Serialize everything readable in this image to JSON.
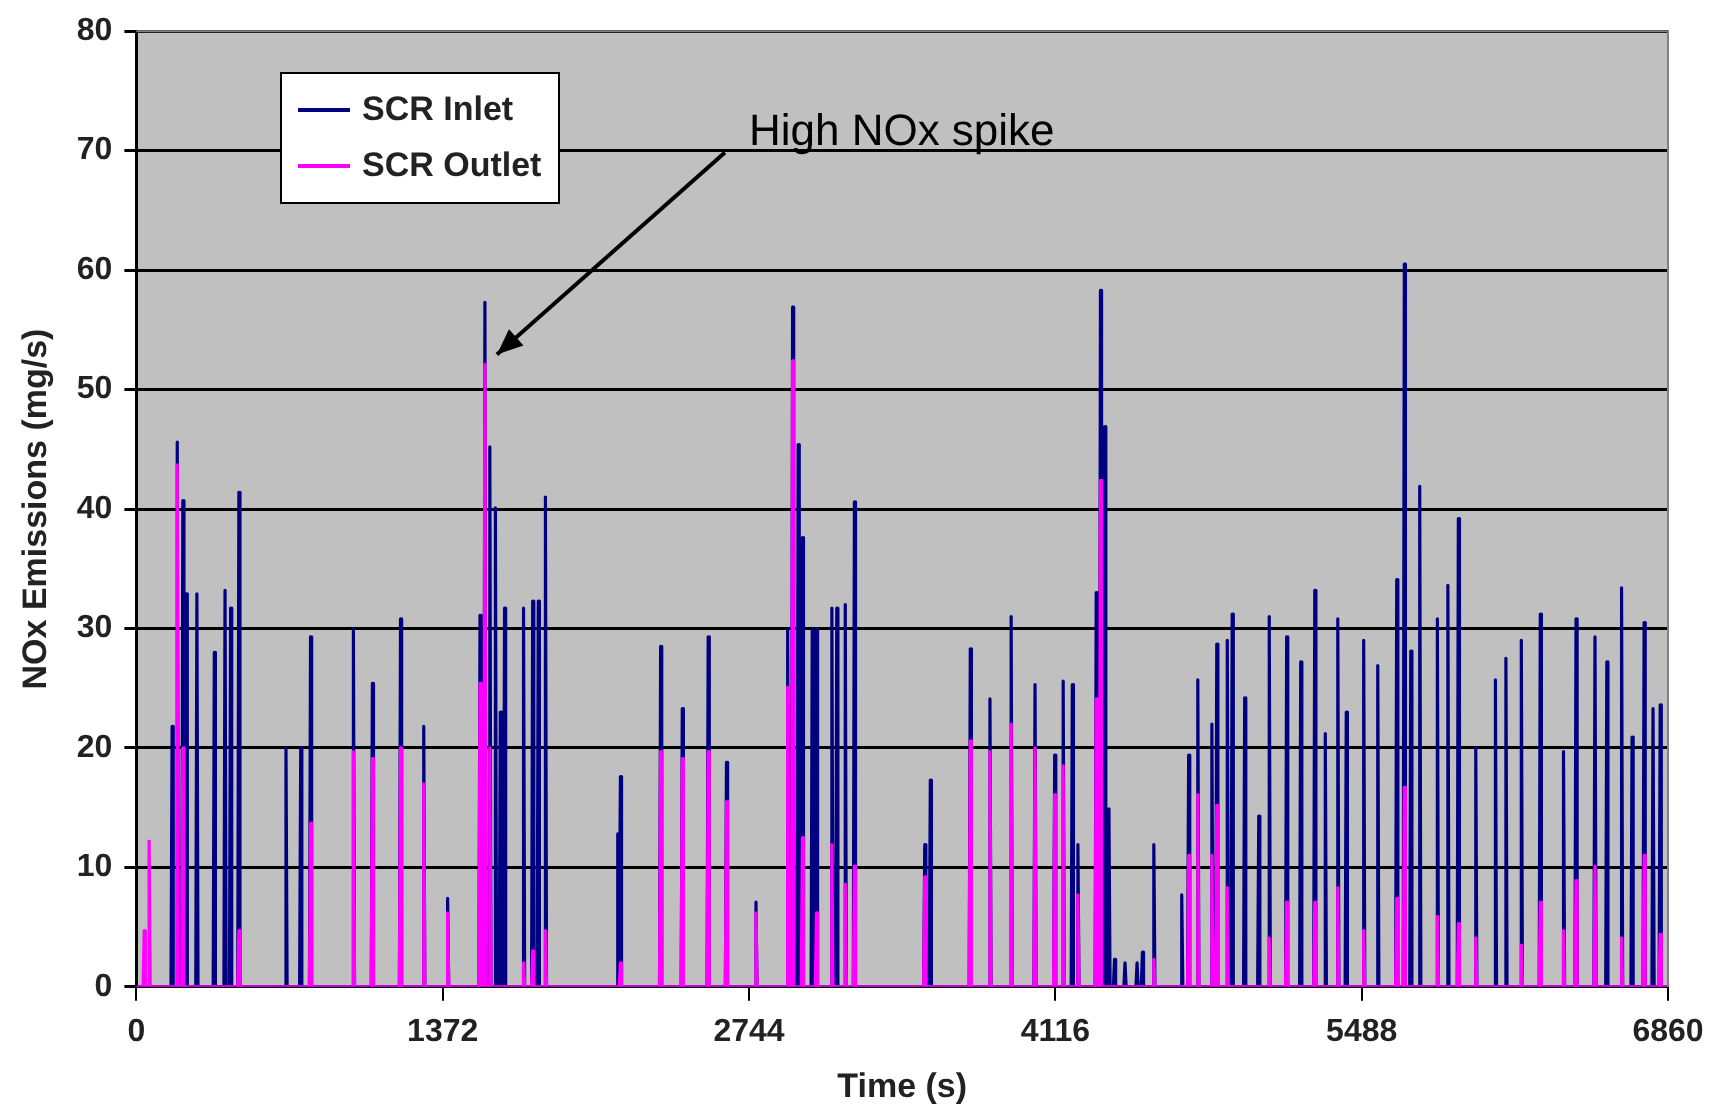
{
  "chart_data": {
    "type": "line",
    "xlabel": "Time (s)",
    "ylabel": "NOx Emissions (mg/s)",
    "xlim": [
      0,
      6860
    ],
    "xticks": [
      0,
      1372,
      2744,
      4116,
      5488,
      6860
    ],
    "ylim": [
      0,
      80
    ],
    "yticks": [
      0,
      10,
      20,
      30,
      40,
      50,
      60,
      70,
      80
    ],
    "grid": "y",
    "legend": "top left",
    "marker": "none",
    "line_style": "solid",
    "annotations": [
      {
        "text": "High NOx spike",
        "x": 1561,
        "y": 52.1
      }
    ],
    "series": [
      {
        "name": "SCR Inlet",
        "color": "#000080",
        "x": [
          0,
          155,
          160,
          165,
          178,
          183,
          188,
          203,
          208,
          213,
          218,
          223,
          228,
          266,
          271,
          276,
          344,
          349,
          354,
          392,
          397,
          402,
          417,
          422,
          427,
          454,
          459,
          464,
          665,
          670,
          675,
          731,
          736,
          741,
          775,
          780,
          785,
          967,
          972,
          977,
          1052,
          1057,
          1062,
          1178,
          1183,
          1188,
          1282,
          1287,
          1292,
          1389,
          1394,
          1399,
          1534,
          1539,
          1544,
          1556,
          1561,
          1566,
          1578,
          1583,
          1588,
          1603,
          1608,
          1613,
          1625,
          1630,
          1635,
          1644,
          1649,
          1654,
          1729,
          1734,
          1739,
          1770,
          1775,
          1780,
          1795,
          1800,
          1805,
          1827,
          1832,
          1837,
          2151,
          2156,
          2161,
          2163,
          2168,
          2173,
          2343,
          2348,
          2353,
          2440,
          2445,
          2450,
          2556,
          2561,
          2566,
          2638,
          2643,
          2648,
          2770,
          2775,
          2780,
          2912,
          2917,
          2922,
          2934,
          2939,
          2944,
          2959,
          2964,
          2969,
          2978,
          2983,
          2988,
          3022,
          3027,
          3032,
          3041,
          3046,
          3051,
          3110,
          3115,
          3120,
          3132,
          3137,
          3142,
          3170,
          3175,
          3180,
          3211,
          3216,
          3221,
          3526,
          3531,
          3536,
          3551,
          3556,
          3561,
          3730,
          3735,
          3740,
          3818,
          3823,
          3828,
          3913,
          3918,
          3923,
          4020,
          4025,
          4030,
          4108,
          4113,
          4118,
          4146,
          4151,
          4156,
          4187,
          4192,
          4197,
          4212,
          4217,
          4222,
          4294,
          4299,
          4304,
          4313,
          4318,
          4323,
          4332,
          4337,
          4342,
          4351,
          4356,
          4361,
          4376,
          4381,
          4386,
          4423,
          4428,
          4433,
          4477,
          4482,
          4487,
          4501,
          4506,
          4511,
          4552,
          4557,
          4562,
          4677,
          4682,
          4687,
          4708,
          4713,
          4718,
          4749,
          4754,
          4759,
          4812,
          4817,
          4822,
          4834,
          4839,
          4844,
          4881,
          4886,
          4891,
          4903,
          4908,
          4913,
          4959,
          4964,
          4969,
          5022,
          5027,
          5032,
          5069,
          5074,
          5079,
          5147,
          5152,
          5157,
          5210,
          5215,
          5220,
          5273,
          5278,
          5283,
          5320,
          5325,
          5330,
          5376,
          5381,
          5386,
          5414,
          5419,
          5424,
          5492,
          5497,
          5502,
          5555,
          5560,
          5565,
          5640,
          5645,
          5650,
          5674,
          5679,
          5684,
          5703,
          5708,
          5713,
          5743,
          5748,
          5753,
          5822,
          5827,
          5832,
          5869,
          5874,
          5879,
          5916,
          5921,
          5926,
          5994,
          5999,
          6004,
          6082,
          6087,
          6092,
          6129,
          6134,
          6139,
          6198,
          6203,
          6208,
          6283,
          6288,
          6293,
          6387,
          6392,
          6397,
          6443,
          6448,
          6453,
          6528,
          6533,
          6538,
          6581,
          6586,
          6591,
          6647,
          6652,
          6657,
          6694,
          6699,
          6704,
          6748,
          6753,
          6758,
          6788,
          6793,
          6798,
          6820,
          6825,
          6830,
          6860
        ],
        "values": [
          0,
          0,
          21.8,
          0,
          0,
          45.6,
          0,
          0,
          40.7,
          0,
          0,
          32.9,
          0,
          0,
          32.9,
          0,
          0,
          28,
          0,
          0,
          33.2,
          0,
          0,
          31.7,
          0,
          0,
          41.4,
          0,
          0,
          20,
          0,
          0,
          20,
          0,
          0,
          29.3,
          0,
          0,
          29.9,
          0,
          0,
          25.4,
          0,
          0,
          30.8,
          0,
          0,
          21.8,
          0,
          0,
          7.4,
          0,
          0,
          31.1,
          0,
          0,
          57.3,
          0,
          0,
          45.2,
          0,
          0,
          40.1,
          0,
          0,
          23,
          0,
          0,
          31.7,
          0,
          0,
          31.7,
          0,
          0,
          32.3,
          0,
          0,
          32.3,
          0,
          0,
          41,
          0,
          0,
          12.8,
          0,
          0,
          17.6,
          0,
          0,
          28.5,
          0,
          0,
          23.3,
          0,
          0,
          29.3,
          0,
          0,
          18.8,
          0,
          0,
          7.1,
          0,
          0,
          29.9,
          0,
          0,
          56.9,
          0,
          0,
          45.4,
          0,
          0,
          37.6,
          0,
          0,
          29.9,
          0,
          0,
          29.9,
          0,
          0,
          31.7,
          0,
          0,
          31.7,
          0,
          0,
          32,
          0,
          0,
          40.6,
          0,
          0,
          11.9,
          0,
          0,
          17.3,
          0,
          0,
          28.3,
          0,
          0,
          24.1,
          0,
          0,
          31,
          0,
          0,
          25.3,
          0,
          0,
          19.4,
          0,
          0,
          25.6,
          0,
          0,
          25.3,
          0,
          0,
          11.9,
          0,
          0,
          33,
          0,
          0,
          58.3,
          0,
          0,
          46.9,
          0,
          0,
          14.9,
          0,
          0,
          2.3,
          0,
          0,
          2,
          0,
          0,
          2,
          0,
          0,
          2.9,
          0,
          0,
          11.9,
          0,
          0,
          7.7,
          0,
          0,
          19.4,
          0,
          0,
          25.7,
          0,
          0,
          22,
          0,
          0,
          28.7,
          0,
          0,
          29,
          0,
          0,
          31.2,
          0,
          0,
          24.2,
          0,
          0,
          14.3,
          0,
          0,
          31,
          0,
          0,
          29.3,
          0,
          0,
          27.2,
          0,
          0,
          33.2,
          0,
          0,
          21.2,
          0,
          0,
          30.8,
          0,
          0,
          23,
          0,
          0,
          29,
          0,
          0,
          26.9,
          0,
          0,
          34.1,
          0,
          0,
          60.5,
          0,
          0,
          28.1,
          0,
          0,
          41.9,
          0,
          0,
          30.8,
          0,
          0,
          33.6,
          0,
          0,
          39.2,
          0,
          0,
          20,
          0,
          0,
          25.7,
          0,
          0,
          27.5,
          0,
          0,
          29,
          0,
          0,
          31.2,
          0,
          0,
          19.7,
          0,
          0,
          30.8,
          0,
          0,
          29.3,
          0,
          0,
          27.2,
          0,
          0,
          33.4,
          0,
          0,
          20.9,
          0,
          0,
          30.5,
          0,
          0,
          23.3,
          0,
          0,
          23.6,
          0,
          0
        ]
      },
      {
        "name": "SCR Outlet",
        "color": "#ff00ff",
        "x": [
          0,
          30,
          35,
          40,
          52,
          57,
          62,
          178,
          183,
          188,
          203,
          208,
          213,
          454,
          459,
          464,
          775,
          780,
          785,
          967,
          972,
          977,
          1052,
          1057,
          1062,
          1178,
          1183,
          1188,
          1282,
          1287,
          1292,
          1389,
          1394,
          1399,
          1534,
          1539,
          1544,
          1556,
          1561,
          1566,
          1578,
          1583,
          1588,
          1729,
          1734,
          1739,
          1770,
          1775,
          1780,
          1827,
          1832,
          1837,
          2163,
          2168,
          2173,
          2343,
          2348,
          2353,
          2440,
          2445,
          2450,
          2556,
          2561,
          2566,
          2638,
          2643,
          2648,
          2770,
          2775,
          2780,
          2912,
          2917,
          2922,
          2934,
          2939,
          2944,
          2978,
          2983,
          2988,
          3041,
          3046,
          3051,
          3110,
          3115,
          3120,
          3170,
          3175,
          3180,
          3211,
          3216,
          3221,
          3526,
          3531,
          3536,
          3730,
          3735,
          3740,
          3818,
          3823,
          3828,
          3913,
          3918,
          3923,
          4020,
          4025,
          4030,
          4108,
          4113,
          4118,
          4146,
          4151,
          4156,
          4212,
          4217,
          4222,
          4294,
          4299,
          4304,
          4313,
          4318,
          4323,
          4552,
          4557,
          4562,
          4708,
          4713,
          4718,
          4749,
          4754,
          4759,
          4812,
          4817,
          4822,
          4834,
          4839,
          4844,
          4881,
          4886,
          4891,
          5069,
          5074,
          5079,
          5147,
          5152,
          5157,
          5273,
          5278,
          5283,
          5376,
          5381,
          5386,
          5492,
          5497,
          5502,
          5640,
          5645,
          5650,
          5674,
          5679,
          5684,
          5822,
          5827,
          5832,
          5916,
          5921,
          5926,
          5994,
          5999,
          6004,
          6198,
          6203,
          6208,
          6283,
          6288,
          6293,
          6387,
          6392,
          6397,
          6443,
          6448,
          6453,
          6528,
          6533,
          6538,
          6647,
          6652,
          6657,
          6748,
          6753,
          6758,
          6820,
          6825,
          6830,
          6860
        ],
        "values": [
          0,
          0,
          4.7,
          0,
          0,
          12.2,
          0,
          0,
          43.7,
          0,
          0,
          20,
          0,
          0,
          4.7,
          0,
          0,
          13.7,
          0,
          0,
          19.7,
          0,
          0,
          19.1,
          0,
          0,
          20,
          0,
          0,
          17,
          0,
          0,
          6.2,
          0,
          0,
          25.4,
          0,
          0,
          52.1,
          0,
          0,
          20,
          0,
          0,
          2,
          0,
          0,
          3,
          0,
          0,
          4.7,
          0,
          0,
          2,
          0,
          0,
          19.7,
          0,
          0,
          19.1,
          0,
          0,
          19.7,
          0,
          0,
          15.5,
          0,
          0,
          6.2,
          0,
          0,
          25.1,
          0,
          0,
          52.4,
          0,
          0,
          12.5,
          0,
          0,
          6.2,
          0,
          0,
          11.9,
          0,
          0,
          8.6,
          0,
          0,
          10.1,
          0,
          0,
          9.2,
          0,
          0,
          20.6,
          0,
          0,
          19.7,
          0,
          0,
          22,
          0,
          0,
          20,
          0,
          0,
          16.1,
          0,
          0,
          18.5,
          0,
          0,
          7.7,
          0,
          0,
          24.1,
          0,
          0,
          42.4,
          0,
          0,
          2.3,
          0,
          0,
          11,
          0,
          0,
          16.1,
          0,
          0,
          11,
          0,
          0,
          15.2,
          0,
          0,
          8.3,
          0,
          0,
          4.1,
          0,
          0,
          7.1,
          0,
          0,
          7.1,
          0,
          0,
          8.3,
          0,
          0,
          4.7,
          0,
          0,
          7.4,
          0,
          0,
          16.7,
          0,
          0,
          5.9,
          0,
          0,
          5.3,
          0,
          0,
          4.1,
          0,
          0,
          3.5,
          0,
          0,
          7.1,
          0,
          0,
          4.7,
          0,
          0,
          8.9,
          0,
          0,
          10.1,
          0,
          0,
          4.1,
          0,
          0,
          11,
          0,
          0,
          4.4,
          0,
          0
        ]
      }
    ]
  }
}
